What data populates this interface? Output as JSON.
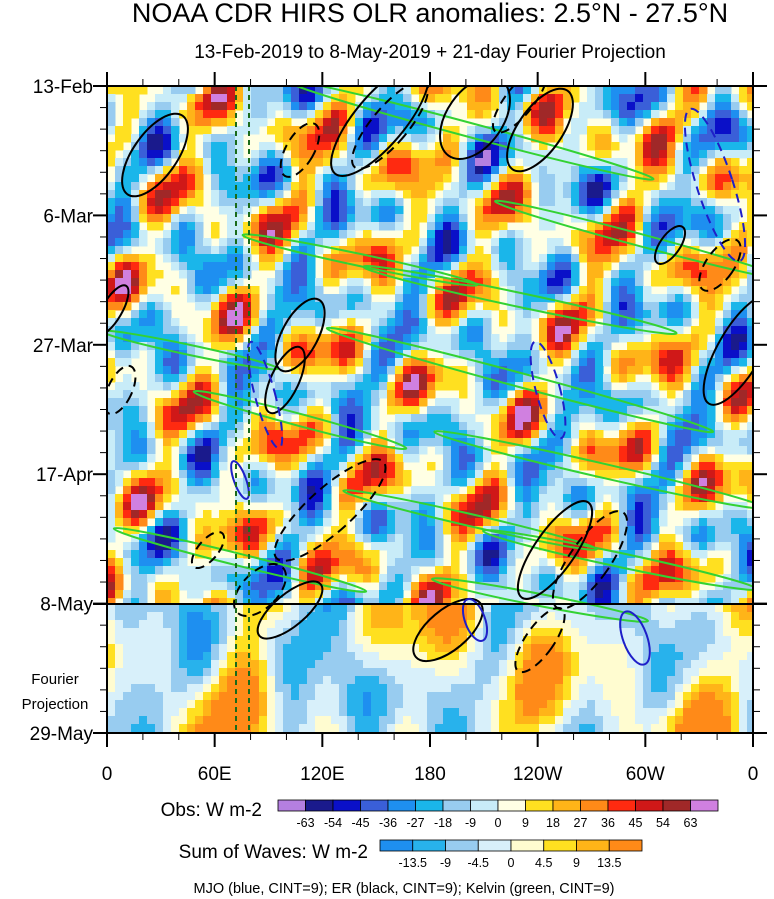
{
  "title": "NOAA CDR HIRS OLR anomalies: 2.5°N - 27.5°N",
  "subtitle": "13-Feb-2019 to 8-May-2019 + 21-day Fourier Projection",
  "chart_data": {
    "type": "heatmap",
    "title": "NOAA CDR HIRS OLR anomalies: 2.5°N - 27.5°N",
    "subtitle": "13-Feb-2019 to 8-May-2019 + 21-day Fourier Projection",
    "xlabel": "",
    "ylabel": "",
    "x_ticks": [
      "0",
      "60E",
      "120E",
      "180",
      "120W",
      "60W",
      "0"
    ],
    "y_ticks": [
      "13-Feb",
      "6-Mar",
      "27-Mar",
      "17-Apr",
      "8-May",
      "29-May"
    ],
    "projection_label": [
      "Fourier",
      "Projection"
    ],
    "observation_end": "8-May",
    "colorbar_obs": {
      "title": "Obs: W m-2",
      "levels": [
        "-63",
        "-54",
        "-45",
        "-36",
        "-27",
        "-18",
        "-9",
        "0",
        "9",
        "18",
        "27",
        "36",
        "45",
        "54",
        "63"
      ],
      "colors": [
        "#b47fe0",
        "#1a1a8c",
        "#0a10c8",
        "#3a5fd8",
        "#1e8ff0",
        "#1ab6ea",
        "#98ccf0",
        "#c8ecf8",
        "#ffffe4",
        "#ffe020",
        "#ffb418",
        "#ff8a18",
        "#ff2a10",
        "#d01818",
        "#a02828",
        "#d080e0"
      ]
    },
    "colorbar_waves": {
      "title": "Sum of Waves: W m-2",
      "levels": [
        "-13.5",
        "-9",
        "-4.5",
        "0",
        "4.5",
        "9",
        "13.5"
      ],
      "colors": [
        "#1e8ff0",
        "#28b2ec",
        "#98ccf0",
        "#d8f0fa",
        "#fffcd0",
        "#ffe020",
        "#ffb418",
        "#ff8a18"
      ]
    },
    "contours": "MJO (blue, CINT=9); ER (black, CINT=9); Kelvin (green, CINT=9)",
    "contour_colors": {
      "mjo": "#1f1fc8",
      "er": "#000000",
      "kelvin": "#33d233"
    }
  }
}
